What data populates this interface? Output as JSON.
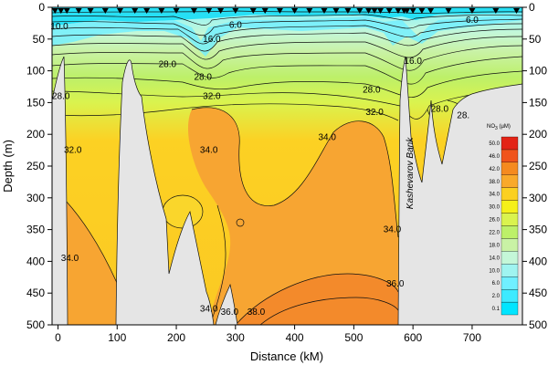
{
  "chart_data": {
    "type": "heatmap",
    "xlabel": "Distance (kM)",
    "ylabel": "Depth (m)",
    "xlim": [
      -10,
      785
    ],
    "ylim": [
      500,
      0
    ],
    "x_ticks": [
      "0",
      "100",
      "200",
      "300",
      "400",
      "500",
      "600",
      "700"
    ],
    "x_tick_values": [
      0,
      100,
      200,
      300,
      400,
      500,
      600,
      700
    ],
    "y_ticks": [
      "0",
      "50",
      "100",
      "150",
      "200",
      "250",
      "300",
      "350",
      "400",
      "450",
      "500"
    ],
    "y_tick_values": [
      0,
      50,
      100,
      150,
      200,
      250,
      300,
      350,
      400,
      450,
      500
    ],
    "annotation": "Kashevarov Bank",
    "station_markers_km": [
      -5,
      5,
      15,
      35,
      55,
      80,
      105,
      130,
      150,
      175,
      200,
      230,
      255,
      275,
      300,
      330,
      350,
      375,
      400,
      425,
      450,
      470,
      490,
      510,
      525,
      535,
      545,
      560,
      575,
      585,
      590,
      600,
      615,
      630,
      660,
      700,
      740,
      775
    ],
    "contour_labels": [
      {
        "text": "10.0",
        "x": -15,
        "y": 30
      },
      {
        "text": "6.0",
        "x": 300,
        "y": 28
      },
      {
        "text": "16.0",
        "x": 260,
        "y": 50
      },
      {
        "text": "6.0",
        "x": 700,
        "y": 20
      },
      {
        "text": "16.0",
        "x": 600,
        "y": 85
      },
      {
        "text": "28.0",
        "x": 185,
        "y": 90
      },
      {
        "text": "28.0",
        "x": 245,
        "y": 110
      },
      {
        "text": "28.0",
        "x": 5,
        "y": 140
      },
      {
        "text": "32.0",
        "x": 260,
        "y": 140
      },
      {
        "text": "28.0",
        "x": 530,
        "y": 130
      },
      {
        "text": "32.0",
        "x": 535,
        "y": 165
      },
      {
        "text": "32.0",
        "x": 25,
        "y": 225
      },
      {
        "text": "34.0",
        "x": 255,
        "y": 225
      },
      {
        "text": "34.0",
        "x": 455,
        "y": 205
      },
      {
        "text": "28.0",
        "x": 645,
        "y": 160
      },
      {
        "text": "28.",
        "x": 685,
        "y": 170
      },
      {
        "text": "34.0",
        "x": 565,
        "y": 350
      },
      {
        "text": "34.0",
        "x": 20,
        "y": 395
      },
      {
        "text": "34.0",
        "x": 255,
        "y": 475
      },
      {
        "text": "36.0",
        "x": 290,
        "y": 480
      },
      {
        "text": "38.0",
        "x": 335,
        "y": 480
      },
      {
        "text": "36.0",
        "x": 570,
        "y": 435
      }
    ],
    "colorbar": {
      "title": "NO",
      "title_sub": "3",
      "title_unit": " (µM)",
      "levels": [
        "0.1",
        "2.0",
        "6.0",
        "10.0",
        "14.0",
        "18.0",
        "22.0",
        "26.0",
        "30.0",
        "34.0",
        "38.0",
        "42.0",
        "46.0",
        "50.0"
      ],
      "colors": [
        "#00e5ff",
        "#3deaff",
        "#70efff",
        "#9ff4f0",
        "#c4f7d8",
        "#c9f2a5",
        "#bdf069",
        "#daf34e",
        "#f5f01a",
        "#fbd021",
        "#f9a92a",
        "#f58a1f",
        "#f0531b",
        "#e32316"
      ]
    },
    "colors": {
      "background_field": "#fbc923",
      "deep_core": "#f7a532",
      "deep_core_max": "#f38a2b",
      "surface": "#27e0f5",
      "topography": "#e5e5e5",
      "contour": "#111111"
    }
  }
}
